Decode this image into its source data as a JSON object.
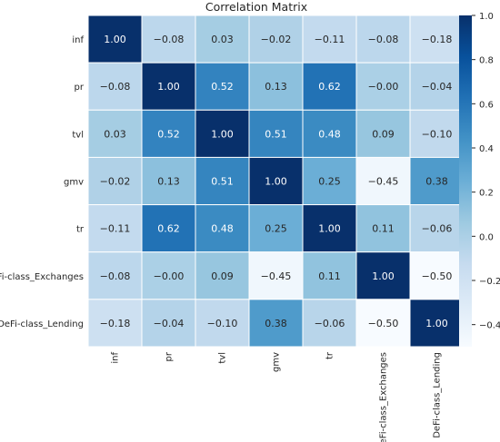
{
  "chart_data": {
    "type": "heatmap",
    "title": "Correlation Matrix",
    "rows": [
      "inf",
      "pr",
      "tvl",
      "gmv",
      "tr",
      "DeFi-class_Exchanges",
      "DeFi-class_Lending"
    ],
    "columns": [
      "inf",
      "pr",
      "tvl",
      "gmv",
      "tr",
      "DeFi-class_Exchanges",
      "DeFi-class_Lending"
    ],
    "values": [
      [
        1.0,
        -0.08,
        0.03,
        -0.02,
        -0.11,
        -0.08,
        -0.18
      ],
      [
        -0.08,
        1.0,
        0.52,
        0.13,
        0.62,
        -0.0,
        -0.04
      ],
      [
        0.03,
        0.52,
        1.0,
        0.51,
        0.48,
        0.09,
        -0.1
      ],
      [
        -0.02,
        0.13,
        0.51,
        1.0,
        0.25,
        -0.45,
        0.38
      ],
      [
        -0.11,
        0.62,
        0.48,
        0.25,
        1.0,
        0.11,
        -0.06
      ],
      [
        -0.08,
        -0.0,
        0.09,
        -0.45,
        0.11,
        1.0,
        -0.5
      ],
      [
        -0.18,
        -0.04,
        -0.1,
        0.38,
        -0.06,
        -0.5,
        1.0
      ]
    ],
    "cell_labels": [
      [
        "1.00",
        "−0.08",
        "0.03",
        "−0.02",
        "−0.11",
        "−0.08",
        "−0.18"
      ],
      [
        "−0.08",
        "1.00",
        "0.52",
        "0.13",
        "0.62",
        "−0.00",
        "−0.04"
      ],
      [
        "0.03",
        "0.52",
        "1.00",
        "0.51",
        "0.48",
        "0.09",
        "−0.10"
      ],
      [
        "−0.02",
        "0.13",
        "0.51",
        "1.00",
        "0.25",
        "−0.45",
        "0.38"
      ],
      [
        "−0.11",
        "0.62",
        "0.48",
        "0.25",
        "1.00",
        "0.11",
        "−0.06"
      ],
      [
        "−0.08",
        "−0.00",
        "0.09",
        "−0.45",
        "0.11",
        "1.00",
        "−0.50"
      ],
      [
        "−0.18",
        "−0.04",
        "−0.10",
        "0.38",
        "−0.06",
        "−0.50",
        "1.00"
      ]
    ],
    "colormap": "Blues",
    "color_range": [
      -0.5,
      1.0
    ],
    "colorbar": {
      "ticks": [
        1.0,
        0.8,
        0.6,
        0.4,
        0.2,
        0.0,
        -0.2,
        -0.4
      ],
      "tick_labels": [
        "1.0",
        "0.8",
        "0.6",
        "0.4",
        "0.2",
        "0.0",
        "−0.2",
        "−0.4"
      ]
    },
    "grid": true,
    "xtick_rotation": "vertical"
  }
}
